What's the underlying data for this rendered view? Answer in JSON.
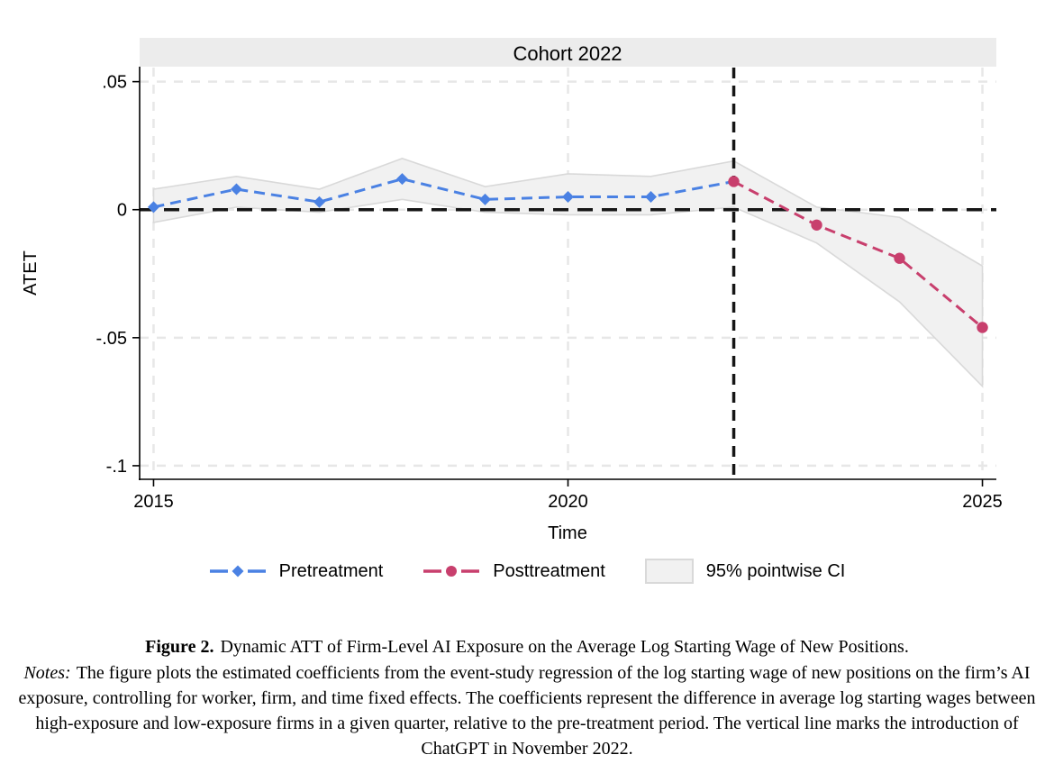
{
  "chart_data": {
    "type": "line",
    "title": "Cohort 2022",
    "xlabel": "Time",
    "ylabel": "ATET",
    "xlim": [
      2014.832,
      2025.168
    ],
    "ylim": [
      -0.1053,
      0.0555
    ],
    "xticks": {
      "values": [
        2015,
        2020,
        2025
      ],
      "labels": [
        "2015",
        "2020",
        "2025"
      ]
    },
    "yticks": {
      "values": [
        0.05,
        0,
        -0.05,
        -0.1
      ],
      "labels": [
        ".05",
        "0",
        "-.05",
        "-.1"
      ]
    },
    "grid": "light dashed gridlines at x and y ticks",
    "legend_position": "bottom center",
    "hline_y": 0,
    "vline_x": 2022,
    "series": [
      {
        "name": "Pretreatment",
        "marker": "diamond",
        "linestyle": "dashed",
        "x": [
          2015,
          2016,
          2017,
          2018,
          2019,
          2020,
          2021
        ],
        "y": [
          0.001,
          0.008,
          0.003,
          0.012,
          0.004,
          0.005,
          0.005
        ],
        "connects_to_next_series": true
      },
      {
        "name": "Posttreatment",
        "marker": "circle",
        "linestyle": "dashed",
        "x": [
          2022,
          2023,
          2024,
          2025
        ],
        "y": [
          0.011,
          -0.006,
          -0.019,
          -0.046
        ]
      }
    ],
    "ci": {
      "name": "95% pointwise CI",
      "x": [
        2015,
        2016,
        2017,
        2018,
        2019,
        2020,
        2021,
        2022,
        2023,
        2024,
        2025
      ],
      "lower": [
        -0.005,
        0.001,
        -0.001,
        0.004,
        -0.001,
        -0.002,
        -0.002,
        0.001,
        -0.013,
        -0.036,
        -0.069
      ],
      "upper": [
        0.008,
        0.013,
        0.008,
        0.02,
        0.009,
        0.014,
        0.013,
        0.019,
        0.001,
        -0.003,
        -0.022
      ]
    },
    "colors": {
      "pretreatment": "#4a81e3",
      "posttreatment": "#c83f6d",
      "ci_fill": "#f1f1f1",
      "ci_border": "#d9d9d9",
      "reference_lines": "#161616",
      "title_strip": "#ececec",
      "gridlines": "#e7e7e7",
      "axis": "#000000"
    }
  },
  "caption": {
    "figure_label": "Figure 2.",
    "figure_title": "Dynamic ATT of Firm-Level AI Exposure on the Average Log Starting Wage of New Positions.",
    "notes_label": "Notes:",
    "notes_text": "The figure plots the estimated coefficients from the event-study regression of the log starting wage of new positions on the firm’s AI exposure, controlling for worker, firm, and time fixed effects. The coefficients represent the difference in average log starting wages between high-exposure and low-exposure firms in a given quarter, relative to the pre-treatment period. The vertical line marks the introduction of ChatGPT in November 2022."
  }
}
